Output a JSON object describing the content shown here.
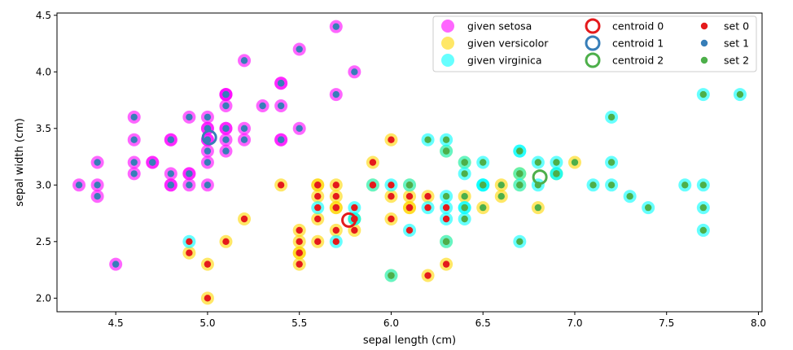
{
  "chart_data": {
    "type": "scatter",
    "xlabel": "sepal length (cm)",
    "ylabel": "sepal width (cm)",
    "xlim": [
      4.18,
      8.02
    ],
    "ylim": [
      1.88,
      4.52
    ],
    "xticks": [
      4.5,
      5.0,
      5.5,
      6.0,
      6.5,
      7.0,
      7.5,
      8.0
    ],
    "xtick_labels": [
      "4.5",
      "5.0",
      "5.5",
      "6.0",
      "6.5",
      "7.0",
      "7.5",
      "8.0"
    ],
    "yticks": [
      2.0,
      2.5,
      3.0,
      3.5,
      4.0,
      4.5
    ],
    "ytick_labels": [
      "2.0",
      "2.5",
      "3.0",
      "3.5",
      "4.0",
      "4.5"
    ],
    "grid": false,
    "legend_position": "top-right",
    "colors": {
      "given_setosa": "#ff00ff",
      "given_versicolor": "#ffd700",
      "given_virginica": "#00ffff",
      "set0": "#e41a1c",
      "set1": "#377eb8",
      "set2": "#4daf4a"
    },
    "legend": [
      {
        "label": "given setosa",
        "kind": "given",
        "color": "#ff00ff"
      },
      {
        "label": "given versicolor",
        "kind": "given",
        "color": "#ffd700"
      },
      {
        "label": "given virginica",
        "kind": "given",
        "color": "#00ffff"
      },
      {
        "label": "centroid 0",
        "kind": "centroid",
        "color": "#e41a1c"
      },
      {
        "label": "centroid 1",
        "kind": "centroid",
        "color": "#377eb8"
      },
      {
        "label": "centroid 2",
        "kind": "centroid",
        "color": "#4daf4a"
      },
      {
        "label": "set 0",
        "kind": "set",
        "color": "#e41a1c"
      },
      {
        "label": "set 1",
        "kind": "set",
        "color": "#377eb8"
      },
      {
        "label": "set 2",
        "kind": "set",
        "color": "#4daf4a"
      }
    ],
    "centroids": [
      {
        "name": "centroid 0",
        "x": 5.77,
        "y": 2.69
      },
      {
        "name": "centroid 1",
        "x": 5.01,
        "y": 3.42
      },
      {
        "name": "centroid 2",
        "x": 6.81,
        "y": 3.07
      }
    ],
    "points": {
      "setosa": [
        [
          5.1,
          3.5
        ],
        [
          4.9,
          3.0
        ],
        [
          4.7,
          3.2
        ],
        [
          4.6,
          3.1
        ],
        [
          5.0,
          3.6
        ],
        [
          5.4,
          3.9
        ],
        [
          4.6,
          3.4
        ],
        [
          5.0,
          3.4
        ],
        [
          4.4,
          2.9
        ],
        [
          4.9,
          3.1
        ],
        [
          5.4,
          3.7
        ],
        [
          4.8,
          3.4
        ],
        [
          4.8,
          3.0
        ],
        [
          4.3,
          3.0
        ],
        [
          5.8,
          4.0
        ],
        [
          5.7,
          4.4
        ],
        [
          5.4,
          3.9
        ],
        [
          5.1,
          3.5
        ],
        [
          5.7,
          3.8
        ],
        [
          5.1,
          3.8
        ],
        [
          5.4,
          3.4
        ],
        [
          5.1,
          3.7
        ],
        [
          4.6,
          3.6
        ],
        [
          5.1,
          3.3
        ],
        [
          4.8,
          3.4
        ],
        [
          5.0,
          3.0
        ],
        [
          5.0,
          3.4
        ],
        [
          5.2,
          3.5
        ],
        [
          5.2,
          3.4
        ],
        [
          4.7,
          3.2
        ],
        [
          4.8,
          3.1
        ],
        [
          5.4,
          3.4
        ],
        [
          5.2,
          4.1
        ],
        [
          5.5,
          4.2
        ],
        [
          4.9,
          3.1
        ],
        [
          5.0,
          3.2
        ],
        [
          5.5,
          3.5
        ],
        [
          4.9,
          3.6
        ],
        [
          4.4,
          3.0
        ],
        [
          5.1,
          3.4
        ],
        [
          5.0,
          3.5
        ],
        [
          4.5,
          2.3
        ],
        [
          4.4,
          3.2
        ],
        [
          5.0,
          3.5
        ],
        [
          5.1,
          3.8
        ],
        [
          4.8,
          3.0
        ],
        [
          5.1,
          3.8
        ],
        [
          4.6,
          3.2
        ],
        [
          5.3,
          3.7
        ],
        [
          5.0,
          3.3
        ]
      ],
      "versicolor": [
        [
          7.0,
          3.2
        ],
        [
          6.4,
          3.2
        ],
        [
          6.9,
          3.1
        ],
        [
          5.5,
          2.3
        ],
        [
          6.5,
          2.8
        ],
        [
          5.7,
          2.8
        ],
        [
          6.3,
          3.3
        ],
        [
          4.9,
          2.4
        ],
        [
          6.6,
          2.9
        ],
        [
          5.2,
          2.7
        ],
        [
          5.0,
          2.0
        ],
        [
          5.9,
          3.0
        ],
        [
          6.0,
          2.2
        ],
        [
          6.1,
          2.9
        ],
        [
          5.6,
          2.9
        ],
        [
          6.7,
          3.1
        ],
        [
          5.6,
          3.0
        ],
        [
          5.8,
          2.7
        ],
        [
          6.2,
          2.2
        ],
        [
          5.6,
          2.5
        ],
        [
          5.9,
          3.2
        ],
        [
          6.1,
          2.8
        ],
        [
          6.3,
          2.5
        ],
        [
          6.1,
          2.8
        ],
        [
          6.4,
          2.9
        ],
        [
          6.6,
          3.0
        ],
        [
          6.8,
          2.8
        ],
        [
          6.7,
          3.0
        ],
        [
          6.0,
          2.9
        ],
        [
          5.7,
          2.6
        ],
        [
          5.5,
          2.4
        ],
        [
          5.5,
          2.4
        ],
        [
          5.8,
          2.7
        ],
        [
          6.0,
          2.7
        ],
        [
          5.4,
          3.0
        ],
        [
          6.0,
          3.4
        ],
        [
          6.7,
          3.1
        ],
        [
          6.3,
          2.3
        ],
        [
          5.6,
          3.0
        ],
        [
          5.5,
          2.5
        ],
        [
          5.5,
          2.6
        ],
        [
          6.1,
          3.0
        ],
        [
          5.8,
          2.6
        ],
        [
          5.0,
          2.3
        ],
        [
          5.6,
          2.7
        ],
        [
          5.7,
          3.0
        ],
        [
          5.7,
          2.9
        ],
        [
          6.2,
          2.9
        ],
        [
          5.1,
          2.5
        ],
        [
          5.7,
          2.8
        ]
      ],
      "virginica": [
        [
          6.3,
          3.3
        ],
        [
          5.8,
          2.7
        ],
        [
          7.1,
          3.0
        ],
        [
          6.3,
          2.9
        ],
        [
          6.5,
          3.0
        ],
        [
          7.6,
          3.0
        ],
        [
          4.9,
          2.5
        ],
        [
          7.3,
          2.9
        ],
        [
          6.7,
          2.5
        ],
        [
          7.2,
          3.6
        ],
        [
          6.5,
          3.2
        ],
        [
          6.4,
          2.7
        ],
        [
          6.8,
          3.0
        ],
        [
          5.7,
          2.5
        ],
        [
          5.8,
          2.8
        ],
        [
          6.4,
          3.2
        ],
        [
          6.5,
          3.0
        ],
        [
          7.7,
          3.8
        ],
        [
          7.7,
          2.6
        ],
        [
          6.0,
          2.2
        ],
        [
          6.9,
          3.2
        ],
        [
          5.6,
          2.8
        ],
        [
          7.7,
          2.8
        ],
        [
          6.3,
          2.7
        ],
        [
          6.7,
          3.3
        ],
        [
          7.2,
          3.2
        ],
        [
          6.2,
          2.8
        ],
        [
          6.1,
          3.0
        ],
        [
          6.4,
          2.8
        ],
        [
          7.2,
          3.0
        ],
        [
          7.4,
          2.8
        ],
        [
          7.9,
          3.8
        ],
        [
          6.4,
          2.8
        ],
        [
          6.3,
          2.8
        ],
        [
          6.1,
          2.6
        ],
        [
          7.7,
          3.0
        ],
        [
          6.3,
          3.4
        ],
        [
          6.4,
          3.1
        ],
        [
          6.0,
          3.0
        ],
        [
          6.9,
          3.1
        ],
        [
          6.7,
          3.1
        ],
        [
          6.9,
          3.1
        ],
        [
          5.8,
          2.7
        ],
        [
          6.8,
          3.2
        ],
        [
          6.7,
          3.3
        ],
        [
          6.7,
          3.0
        ],
        [
          6.3,
          2.5
        ],
        [
          6.5,
          3.0
        ],
        [
          6.2,
          3.4
        ],
        [
          5.9,
          3.0
        ]
      ]
    },
    "assigned_set": {
      "setosa": [
        1,
        1,
        1,
        1,
        1,
        1,
        1,
        1,
        1,
        1,
        1,
        1,
        1,
        1,
        1,
        1,
        1,
        1,
        1,
        1,
        1,
        1,
        1,
        1,
        1,
        1,
        1,
        1,
        1,
        1,
        1,
        1,
        1,
        1,
        1,
        1,
        1,
        1,
        1,
        1,
        1,
        1,
        1,
        1,
        1,
        1,
        1,
        1,
        1,
        1
      ],
      "versicolor": [
        2,
        2,
        2,
        0,
        2,
        0,
        2,
        0,
        2,
        0,
        0,
        0,
        0,
        0,
        0,
        2,
        0,
        0,
        0,
        0,
        0,
        0,
        0,
        0,
        2,
        2,
        2,
        2,
        0,
        0,
        0,
        0,
        0,
        0,
        0,
        0,
        2,
        0,
        0,
        0,
        0,
        0,
        0,
        0,
        0,
        0,
        0,
        0,
        0,
        0
      ],
      "virginica": [
        2,
        0,
        2,
        2,
        2,
        2,
        0,
        2,
        2,
        2,
        2,
        2,
        2,
        0,
        0,
        2,
        2,
        2,
        2,
        2,
        2,
        0,
        2,
        0,
        2,
        2,
        0,
        2,
        2,
        2,
        2,
        2,
        2,
        0,
        0,
        2,
        2,
        2,
        0,
        2,
        2,
        2,
        0,
        2,
        2,
        2,
        2,
        2,
        2,
        0
      ]
    }
  }
}
